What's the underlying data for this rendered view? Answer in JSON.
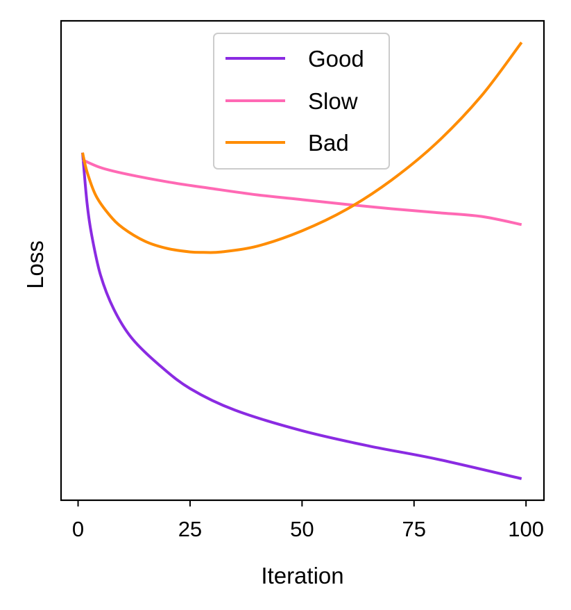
{
  "chart_data": {
    "type": "line",
    "title": "",
    "xlabel": "Iteration",
    "ylabel": "Loss",
    "xlim": [
      -3.8,
      104
    ],
    "ylim": [
      0,
      1
    ],
    "xticks": [
      0,
      25,
      50,
      75,
      100
    ],
    "x_tick_labels": [
      "0",
      "25",
      "50",
      "75",
      "100"
    ],
    "y_tick_labels_shown": false,
    "grid": false,
    "legend_position": "upper-center",
    "series": [
      {
        "name": "Good",
        "color": "#8a2be2",
        "x": [
          1,
          2,
          3,
          5,
          8,
          12,
          18,
          25,
          35,
          50,
          65,
          80,
          99
        ],
        "y": [
          0.725,
          0.62,
          0.555,
          0.47,
          0.398,
          0.338,
          0.283,
          0.233,
          0.188,
          0.145,
          0.113,
          0.086,
          0.045
        ]
      },
      {
        "name": "Slow",
        "color": "#ff69b4",
        "x": [
          1,
          5,
          10,
          20,
          30,
          40,
          50,
          60,
          70,
          80,
          90,
          99
        ],
        "y": [
          0.71,
          0.694,
          0.682,
          0.664,
          0.65,
          0.637,
          0.627,
          0.617,
          0.608,
          0.6,
          0.592,
          0.575
        ]
      },
      {
        "name": "Bad",
        "color": "#ff8c00",
        "x": [
          1,
          2,
          4,
          7,
          10,
          15,
          20,
          25,
          28,
          32,
          40,
          50,
          60,
          70,
          80,
          90,
          99
        ],
        "y": [
          0.725,
          0.685,
          0.635,
          0.595,
          0.568,
          0.54,
          0.525,
          0.518,
          0.517,
          0.518,
          0.53,
          0.562,
          0.607,
          0.668,
          0.745,
          0.843,
          0.955
        ]
      }
    ]
  }
}
